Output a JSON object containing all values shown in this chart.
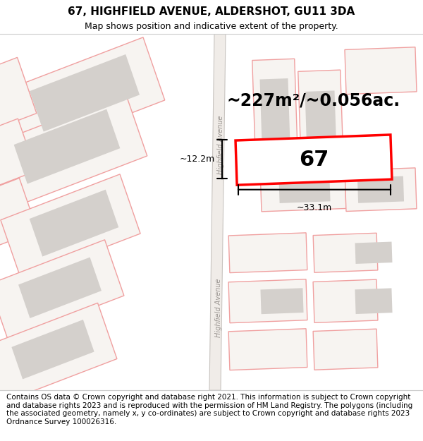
{
  "title_line1": "67, HIGHFIELD AVENUE, ALDERSHOT, GU11 3DA",
  "title_line2": "Map shows position and indicative extent of the property.",
  "footer_text": "Contains OS data © Crown copyright and database right 2021. This information is subject to Crown copyright and database rights 2023 and is reproduced with the permission of HM Land Registry. The polygons (including the associated geometry, namely x, y co-ordinates) are subject to Crown copyright and database rights 2023 Ordnance Survey 100026316.",
  "area_label": "~227m²/~0.056ac.",
  "plot_number": "67",
  "width_label": "~33.1m",
  "height_label": "~12.2m",
  "road_label": "Highfield Avenue",
  "map_bg": "#f7f4f1",
  "building_fill": "#d4d0cc",
  "road_line_color": "#aaaaaa",
  "plot_edge_color": "#ff0000",
  "plot_fill_color": "#ffffff",
  "other_plot_edge": "#f0a0a0",
  "other_plot_fill": "#f7f4f1",
  "dim_color": "#000000",
  "title_fontsize": 11,
  "subtitle_fontsize": 9,
  "footer_fontsize": 7.5,
  "area_fontsize": 17,
  "number_fontsize": 22
}
